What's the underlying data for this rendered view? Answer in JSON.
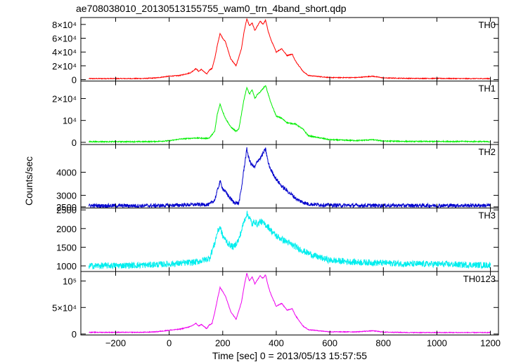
{
  "chart_data": {
    "type": "line",
    "title": "ae708038010_20130513155755_wam0_trn_4band_short.qdp",
    "xlabel": "Time [sec] 0 = 2013/05/13 15:57:55",
    "ylabel": "Counts/sec",
    "xlim": [
      -330,
      1230
    ],
    "xticks": [
      "−200",
      "0",
      "200",
      "400",
      "600",
      "800",
      "1000",
      "1200"
    ],
    "xtick_values": [
      -200,
      0,
      200,
      400,
      600,
      800,
      1000,
      1200
    ],
    "x_range": [
      -300,
      1200
    ],
    "grid": false,
    "panels": [
      {
        "name": "TH0",
        "color": "#ff0000",
        "ylim": [
          -2000,
          90000
        ],
        "noise": 0.006,
        "yticks": [
          {
            "value": 0,
            "label": "0"
          },
          {
            "value": 20000,
            "label": "2×10⁴"
          },
          {
            "value": 40000,
            "label": "4×10⁴"
          },
          {
            "value": 60000,
            "label": "6×10⁴"
          },
          {
            "value": 80000,
            "label": "8×10⁴"
          }
        ],
        "x": [
          -300,
          -100,
          -50,
          0,
          40,
          80,
          100,
          110,
          120,
          140,
          150,
          160,
          170,
          180,
          190,
          200,
          210,
          230,
          250,
          270,
          280,
          290,
          300,
          310,
          320,
          340,
          350,
          360,
          370,
          380,
          400,
          420,
          440,
          460,
          470,
          500,
          520,
          600,
          700,
          760,
          800,
          900,
          1000,
          1100,
          1200
        ],
        "y": [
          1500,
          1600,
          2500,
          5000,
          6000,
          10000,
          16000,
          12000,
          15000,
          8000,
          14000,
          16000,
          30000,
          50000,
          67000,
          60000,
          55000,
          30000,
          20000,
          45000,
          70000,
          88000,
          78000,
          82000,
          71000,
          85000,
          80000,
          86000,
          70000,
          58000,
          40000,
          45000,
          35000,
          37000,
          28000,
          12000,
          6000,
          3000,
          3000,
          5000,
          2500,
          1800,
          1800,
          1500,
          1500
        ]
      },
      {
        "name": "TH1",
        "color": "#00ee00",
        "ylim": [
          -1000,
          28000
        ],
        "noise": 0.008,
        "yticks": [
          {
            "value": 0,
            "label": "0"
          },
          {
            "value": 10000,
            "label": "10⁴"
          },
          {
            "value": 20000,
            "label": "2×10⁴"
          }
        ],
        "x": [
          -300,
          -100,
          -50,
          0,
          40,
          100,
          140,
          150,
          170,
          180,
          190,
          200,
          210,
          230,
          250,
          260,
          270,
          280,
          290,
          300,
          310,
          320,
          330,
          340,
          350,
          360,
          370,
          380,
          400,
          420,
          440,
          460,
          470,
          500,
          520,
          600,
          700,
          760,
          800,
          900,
          1000,
          1100,
          1200
        ],
        "y": [
          300,
          300,
          400,
          700,
          1500,
          2000,
          1800,
          2000,
          5000,
          13000,
          17500,
          14000,
          11000,
          7000,
          5000,
          6000,
          13000,
          20000,
          25000,
          22000,
          24000,
          20000,
          22000,
          23000,
          24500,
          26000,
          22000,
          18000,
          12000,
          11000,
          9000,
          8500,
          8500,
          6000,
          3000,
          1200,
          800,
          1200,
          600,
          400,
          400,
          400,
          300
        ]
      },
      {
        "name": "TH2",
        "color": "#0000cc",
        "ylim": [
          2450,
          5200
        ],
        "noise": 0.03,
        "yticks": [
          {
            "value": 2500,
            "label": "2500"
          },
          {
            "value": 3000,
            "label": "3000"
          },
          {
            "value": 4000,
            "label": "4000"
          }
        ],
        "x": [
          -300,
          -100,
          0,
          100,
          150,
          170,
          180,
          190,
          200,
          220,
          240,
          260,
          270,
          280,
          290,
          300,
          310,
          320,
          330,
          340,
          350,
          360,
          370,
          380,
          400,
          420,
          440,
          460,
          480,
          500,
          520,
          600,
          700,
          800,
          900,
          1000,
          1100,
          1200
        ],
        "y": [
          2550,
          2550,
          2560,
          2600,
          2600,
          2800,
          3200,
          3600,
          3300,
          3000,
          2700,
          2650,
          3300,
          4200,
          5000,
          4500,
          4300,
          4200,
          4500,
          4600,
          4800,
          5000,
          4400,
          4100,
          3700,
          3400,
          3200,
          3000,
          2800,
          2700,
          2620,
          2570,
          2560,
          2560,
          2560,
          2560,
          2560,
          2560
        ]
      },
      {
        "name": "TH3",
        "color": "#00eeee",
        "ylim": [
          850,
          2550
        ],
        "noise": 0.05,
        "yticks": [
          {
            "value": 1000,
            "label": "1000"
          },
          {
            "value": 1500,
            "label": "1500"
          },
          {
            "value": 2000,
            "label": "2000"
          },
          {
            "value": 2500,
            "label": "2500"
          }
        ],
        "x": [
          -300,
          -100,
          0,
          100,
          150,
          170,
          180,
          190,
          200,
          220,
          240,
          260,
          280,
          290,
          300,
          310,
          320,
          330,
          340,
          350,
          360,
          370,
          380,
          400,
          450,
          500,
          550,
          600,
          700,
          800,
          900,
          1000,
          1100,
          1200
        ],
        "y": [
          1000,
          1020,
          1050,
          1100,
          1200,
          1600,
          1900,
          2050,
          1800,
          1600,
          1500,
          1700,
          2200,
          2400,
          2300,
          2100,
          2200,
          2100,
          2200,
          2150,
          2100,
          2050,
          1950,
          1800,
          1600,
          1400,
          1250,
          1150,
          1100,
          1080,
          1050,
          1050,
          1030,
          1020
        ]
      },
      {
        "name": "TH0123",
        "color": "#ee00ee",
        "ylim": [
          -2000,
          118000
        ],
        "noise": 0.006,
        "yticks": [
          {
            "value": 0,
            "label": "0"
          },
          {
            "value": 50000,
            "label": "5×10⁴"
          },
          {
            "value": 100000,
            "label": "10⁵"
          }
        ],
        "x": [
          -300,
          -100,
          -50,
          0,
          40,
          80,
          100,
          110,
          120,
          140,
          150,
          160,
          170,
          180,
          190,
          200,
          210,
          230,
          250,
          270,
          280,
          290,
          300,
          310,
          320,
          340,
          350,
          360,
          370,
          380,
          400,
          420,
          440,
          460,
          470,
          500,
          520,
          600,
          700,
          760,
          800,
          900,
          1000,
          1100,
          1200
        ],
        "y": [
          3000,
          3000,
          4000,
          7000,
          9000,
          14000,
          20000,
          15000,
          18000,
          10000,
          17000,
          20000,
          40000,
          65000,
          88000,
          80000,
          72000,
          42000,
          28000,
          60000,
          90000,
          115000,
          100000,
          108000,
          95000,
          110000,
          105000,
          112000,
          90000,
          75000,
          52000,
          58000,
          45000,
          48000,
          36000,
          15000,
          8000,
          4000,
          4000,
          6000,
          3500,
          2500,
          2500,
          2500,
          2500
        ]
      }
    ]
  }
}
